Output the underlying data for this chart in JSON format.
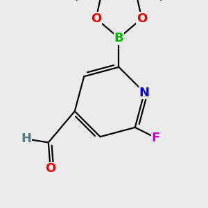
{
  "background_color": "#ebebeb",
  "atom_colors": {
    "C": "#000000",
    "N": "#0000ee",
    "O": "#ee0000",
    "B": "#00bb00",
    "F": "#cc00cc",
    "H": "#4a8080"
  },
  "bond_color": "#000000",
  "bond_width": 1.6,
  "font_size": 13,
  "figsize": [
    3.0,
    3.0
  ],
  "dpi": 100
}
